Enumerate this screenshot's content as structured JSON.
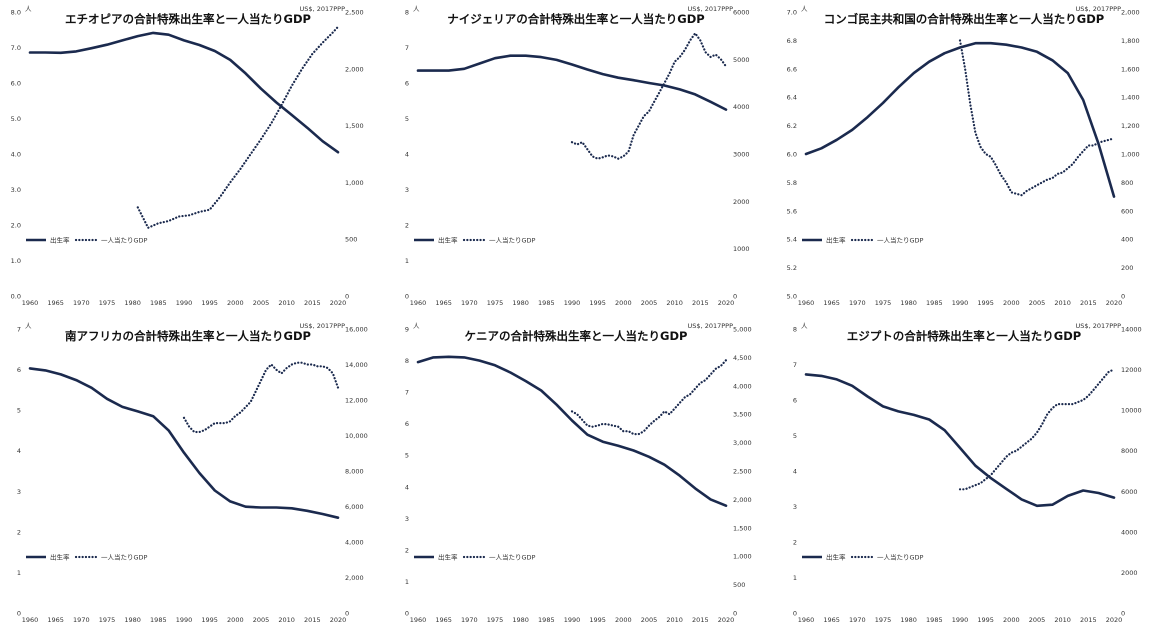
{
  "style": {
    "tfr_color": "#1b2a4e",
    "gdp_color": "#1b2a4e",
    "background": "#ffffff"
  },
  "legend": {
    "tfr": "出生率",
    "gdp": "一人当たりGDP"
  },
  "chart_data": [
    {
      "type": "line",
      "title": "エチオピアの合計特殊出生率と一人当たりGDP",
      "left_unit": "人",
      "right_unit": "US$, 2017PPP",
      "x_ticks": [
        1960,
        1965,
        1970,
        1975,
        1980,
        1985,
        1990,
        1995,
        2000,
        2005,
        2010,
        2015,
        2020
      ],
      "left_ylim": [
        0,
        8
      ],
      "left_ticks": [
        "0.0",
        "1.0",
        "2.0",
        "3.0",
        "4.0",
        "5.0",
        "6.0",
        "7.0",
        "8.0"
      ],
      "right_ylim": [
        0,
        2500
      ],
      "right_ticks": [
        "0",
        "500",
        "1,000",
        "1,500",
        "2,000",
        "2,500"
      ],
      "series": [
        {
          "name": "出生率",
          "axis": "left",
          "style": "solid",
          "x": [
            1960,
            1963,
            1966,
            1969,
            1972,
            1975,
            1978,
            1981,
            1984,
            1987,
            1990,
            1993,
            1996,
            1999,
            2002,
            2005,
            2008,
            2011,
            2014,
            2017,
            2020
          ],
          "values": [
            6.86,
            6.86,
            6.85,
            6.89,
            6.98,
            7.08,
            7.2,
            7.32,
            7.41,
            7.36,
            7.2,
            7.07,
            6.9,
            6.65,
            6.27,
            5.84,
            5.45,
            5.1,
            4.74,
            4.36,
            4.05
          ]
        },
        {
          "name": "一人当たりGDP",
          "axis": "right",
          "style": "dotted",
          "x": [
            1981,
            1983,
            1985,
            1987,
            1989,
            1991,
            1993,
            1995,
            1997,
            1999,
            2001,
            2003,
            2005,
            2007,
            2009,
            2011,
            2013,
            2015,
            2017,
            2019,
            2020
          ],
          "values": [
            780,
            600,
            640,
            660,
            700,
            710,
            740,
            760,
            870,
            1000,
            1120,
            1250,
            1380,
            1520,
            1680,
            1850,
            2000,
            2130,
            2230,
            2320,
            2370
          ]
        }
      ]
    },
    {
      "type": "line",
      "title": "ナイジェリアの合計特殊出生率と一人当たりGDP",
      "left_unit": "人",
      "right_unit": "US$, 2017PPP",
      "x_ticks": [
        1960,
        1965,
        1970,
        1975,
        1980,
        1985,
        1990,
        1995,
        2000,
        2005,
        2010,
        2015,
        2020
      ],
      "left_ylim": [
        0,
        8
      ],
      "left_ticks": [
        "0",
        "1",
        "2",
        "3",
        "4",
        "5",
        "6",
        "7",
        "8"
      ],
      "right_ylim": [
        0,
        6000
      ],
      "right_ticks": [
        "0",
        "1000",
        "2000",
        "3000",
        "4000",
        "5000",
        "6000"
      ],
      "series": [
        {
          "name": "出生率",
          "axis": "left",
          "style": "solid",
          "x": [
            1960,
            1963,
            1966,
            1969,
            1972,
            1975,
            1978,
            1981,
            1984,
            1987,
            1990,
            1993,
            1996,
            1999,
            2002,
            2005,
            2008,
            2011,
            2014,
            2017,
            2020
          ],
          "values": [
            6.35,
            6.35,
            6.35,
            6.4,
            6.55,
            6.7,
            6.77,
            6.77,
            6.73,
            6.65,
            6.52,
            6.38,
            6.25,
            6.15,
            6.08,
            6.0,
            5.93,
            5.82,
            5.68,
            5.47,
            5.25
          ]
        },
        {
          "name": "一人当たりGDP",
          "axis": "right",
          "style": "dotted",
          "x": [
            1990,
            1991,
            1992,
            1993,
            1994,
            1995,
            1996,
            1997,
            1998,
            1999,
            2000,
            2001,
            2002,
            2003,
            2004,
            2005,
            2006,
            2007,
            2008,
            2009,
            2010,
            2011,
            2012,
            2013,
            2014,
            2015,
            2016,
            2017,
            2018,
            2019,
            2020
          ],
          "values": [
            3250,
            3200,
            3250,
            3100,
            2950,
            2900,
            2930,
            2970,
            2950,
            2900,
            2950,
            3050,
            3400,
            3600,
            3800,
            3900,
            4100,
            4300,
            4500,
            4700,
            4950,
            5050,
            5200,
            5400,
            5550,
            5400,
            5150,
            5050,
            5100,
            5000,
            4850
          ]
        }
      ]
    },
    {
      "type": "line",
      "title": "コンゴ民主共和国の合計特殊出生率と一人当たりGDP",
      "left_unit": "人",
      "right_unit": "US$, 2017PPP",
      "x_ticks": [
        1960,
        1965,
        1970,
        1975,
        1980,
        1985,
        1990,
        1995,
        2000,
        2005,
        2010,
        2015,
        2020
      ],
      "left_ylim": [
        5.0,
        7.0
      ],
      "left_ticks": [
        "5.0",
        "5.2",
        "5.4",
        "5.6",
        "5.8",
        "6.0",
        "6.2",
        "6.4",
        "6.6",
        "6.8",
        "7.0"
      ],
      "right_ylim": [
        0,
        2000
      ],
      "right_ticks": [
        "0",
        "200",
        "400",
        "600",
        "800",
        "1,000",
        "1,200",
        "1,400",
        "1,600",
        "1,800",
        "2,000"
      ],
      "series": [
        {
          "name": "出生率",
          "axis": "left",
          "style": "solid",
          "x": [
            1960,
            1963,
            1966,
            1969,
            1972,
            1975,
            1978,
            1981,
            1984,
            1987,
            1990,
            1993,
            1996,
            1999,
            2002,
            2005,
            2008,
            2011,
            2014,
            2017,
            2020
          ],
          "values": [
            6.0,
            6.04,
            6.1,
            6.17,
            6.26,
            6.36,
            6.47,
            6.57,
            6.65,
            6.71,
            6.75,
            6.78,
            6.78,
            6.77,
            6.75,
            6.72,
            6.66,
            6.57,
            6.38,
            6.07,
            5.7
          ]
        },
        {
          "name": "一人当たりGDP",
          "axis": "right",
          "style": "dotted",
          "x": [
            1990,
            1991,
            1992,
            1993,
            1994,
            1995,
            1996,
            1997,
            1998,
            1999,
            2000,
            2001,
            2002,
            2003,
            2004,
            2005,
            2006,
            2007,
            2008,
            2009,
            2010,
            2011,
            2012,
            2013,
            2014,
            2015,
            2016,
            2017,
            2018,
            2019,
            2020
          ],
          "values": [
            1800,
            1600,
            1350,
            1150,
            1050,
            1000,
            980,
            920,
            850,
            800,
            730,
            720,
            710,
            740,
            760,
            780,
            800,
            820,
            830,
            860,
            870,
            900,
            930,
            980,
            1020,
            1060,
            1060,
            1080,
            1090,
            1100,
            1110
          ]
        }
      ]
    },
    {
      "type": "line",
      "title": "南アフリカの合計特殊出生率と一人当たりGDP",
      "left_unit": "人",
      "right_unit": "US$, 2017PPP",
      "x_ticks": [
        1960,
        1965,
        1970,
        1975,
        1980,
        1985,
        1990,
        1995,
        2000,
        2005,
        2010,
        2015,
        2020
      ],
      "left_ylim": [
        0,
        7
      ],
      "left_ticks": [
        "0",
        "1",
        "2",
        "3",
        "4",
        "5",
        "6",
        "7"
      ],
      "right_ylim": [
        0,
        16000
      ],
      "right_ticks": [
        "0",
        "2,000",
        "4,000",
        "6,000",
        "8,000",
        "10,000",
        "12,000",
        "14,000",
        "16,000"
      ],
      "series": [
        {
          "name": "出生率",
          "axis": "left",
          "style": "solid",
          "x": [
            1960,
            1963,
            1966,
            1969,
            1972,
            1975,
            1978,
            1981,
            1984,
            1987,
            1990,
            1993,
            1996,
            1999,
            2002,
            2005,
            2008,
            2011,
            2014,
            2017,
            2020
          ],
          "values": [
            6.03,
            5.98,
            5.88,
            5.74,
            5.55,
            5.28,
            5.08,
            4.97,
            4.85,
            4.5,
            3.95,
            3.45,
            3.02,
            2.75,
            2.62,
            2.6,
            2.6,
            2.58,
            2.52,
            2.44,
            2.35
          ]
        },
        {
          "name": "一人当たりGDP",
          "axis": "right",
          "style": "dotted",
          "x": [
            1990,
            1991,
            1992,
            1993,
            1994,
            1995,
            1996,
            1997,
            1998,
            1999,
            2000,
            2001,
            2002,
            2003,
            2004,
            2005,
            2006,
            2007,
            2008,
            2009,
            2010,
            2011,
            2012,
            2013,
            2014,
            2015,
            2016,
            2017,
            2018,
            2019,
            2020
          ],
          "values": [
            11000,
            10500,
            10200,
            10200,
            10300,
            10500,
            10700,
            10700,
            10700,
            10800,
            11100,
            11300,
            11600,
            11900,
            12500,
            13100,
            13700,
            14000,
            13700,
            13500,
            13800,
            14000,
            14100,
            14100,
            14000,
            14000,
            13900,
            13900,
            13800,
            13500,
            12700
          ]
        }
      ]
    },
    {
      "type": "line",
      "title": "ケニアの合計特殊出生率と一人当たりGDP",
      "left_unit": "人",
      "right_unit": "US$, 2017PPP",
      "x_ticks": [
        1960,
        1965,
        1970,
        1975,
        1980,
        1985,
        1990,
        1995,
        2000,
        2005,
        2010,
        2015,
        2020
      ],
      "left_ylim": [
        0,
        9
      ],
      "left_ticks": [
        "0",
        "1",
        "2",
        "3",
        "4",
        "5",
        "6",
        "7",
        "8",
        "9"
      ],
      "right_ylim": [
        0,
        5000
      ],
      "right_ticks": [
        "0",
        "500",
        "1,000",
        "1,500",
        "2,000",
        "2,500",
        "3,000",
        "3,500",
        "4,000",
        "4,500",
        "5,000"
      ],
      "series": [
        {
          "name": "出生率",
          "axis": "left",
          "style": "solid",
          "x": [
            1960,
            1963,
            1966,
            1969,
            1972,
            1975,
            1978,
            1981,
            1984,
            1987,
            1990,
            1993,
            1996,
            1999,
            2002,
            2005,
            2008,
            2011,
            2014,
            2017,
            2020
          ],
          "values": [
            7.95,
            8.1,
            8.12,
            8.1,
            8.0,
            7.85,
            7.62,
            7.35,
            7.05,
            6.6,
            6.1,
            5.65,
            5.43,
            5.3,
            5.15,
            4.95,
            4.7,
            4.35,
            3.95,
            3.6,
            3.4
          ]
        },
        {
          "name": "一人当たりGDP",
          "axis": "right",
          "style": "dotted",
          "x": [
            1990,
            1991,
            1992,
            1993,
            1994,
            1995,
            1996,
            1997,
            1998,
            1999,
            2000,
            2001,
            2002,
            2003,
            2004,
            2005,
            2006,
            2007,
            2008,
            2009,
            2010,
            2011,
            2012,
            2013,
            2014,
            2015,
            2016,
            2017,
            2018,
            2019,
            2020
          ],
          "values": [
            3550,
            3500,
            3400,
            3300,
            3280,
            3300,
            3330,
            3320,
            3300,
            3280,
            3200,
            3200,
            3150,
            3150,
            3200,
            3300,
            3380,
            3450,
            3550,
            3500,
            3600,
            3700,
            3800,
            3850,
            3950,
            4050,
            4100,
            4200,
            4300,
            4350,
            4450
          ]
        }
      ]
    },
    {
      "type": "line",
      "title": "エジプトの合計特殊出生率と一人当たりGDP",
      "left_unit": "人",
      "right_unit": "US$, 2017PPP",
      "x_ticks": [
        1960,
        1965,
        1970,
        1975,
        1980,
        1985,
        1990,
        1995,
        2000,
        2005,
        2010,
        2015,
        2020
      ],
      "left_ylim": [
        0,
        8
      ],
      "left_ticks": [
        "0",
        "1",
        "2",
        "3",
        "4",
        "5",
        "6",
        "7",
        "8"
      ],
      "right_ylim": [
        0,
        14000
      ],
      "right_ticks": [
        "0",
        "2000",
        "4000",
        "6000",
        "8000",
        "10000",
        "12000",
        "14000"
      ],
      "series": [
        {
          "name": "出生率",
          "axis": "left",
          "style": "solid",
          "x": [
            1960,
            1963,
            1966,
            1969,
            1972,
            1975,
            1978,
            1981,
            1984,
            1987,
            1990,
            1993,
            1996,
            1999,
            2002,
            2005,
            2008,
            2011,
            2014,
            2017,
            2020
          ],
          "values": [
            6.72,
            6.68,
            6.58,
            6.4,
            6.1,
            5.82,
            5.68,
            5.58,
            5.45,
            5.15,
            4.65,
            4.15,
            3.8,
            3.5,
            3.2,
            3.02,
            3.05,
            3.3,
            3.45,
            3.38,
            3.25
          ]
        },
        {
          "name": "一人当たりGDP",
          "axis": "right",
          "style": "dotted",
          "x": [
            1990,
            1991,
            1992,
            1993,
            1994,
            1995,
            1996,
            1997,
            1998,
            1999,
            2000,
            2001,
            2002,
            2003,
            2004,
            2005,
            2006,
            2007,
            2008,
            2009,
            2010,
            2011,
            2012,
            2013,
            2014,
            2015,
            2016,
            2017,
            2018,
            2019,
            2020
          ],
          "values": [
            6100,
            6100,
            6200,
            6300,
            6400,
            6600,
            6800,
            7100,
            7400,
            7700,
            7900,
            8000,
            8200,
            8400,
            8600,
            8900,
            9300,
            9800,
            10100,
            10300,
            10300,
            10300,
            10300,
            10400,
            10500,
            10700,
            11000,
            11300,
            11600,
            11900,
            12000
          ]
        }
      ]
    }
  ]
}
